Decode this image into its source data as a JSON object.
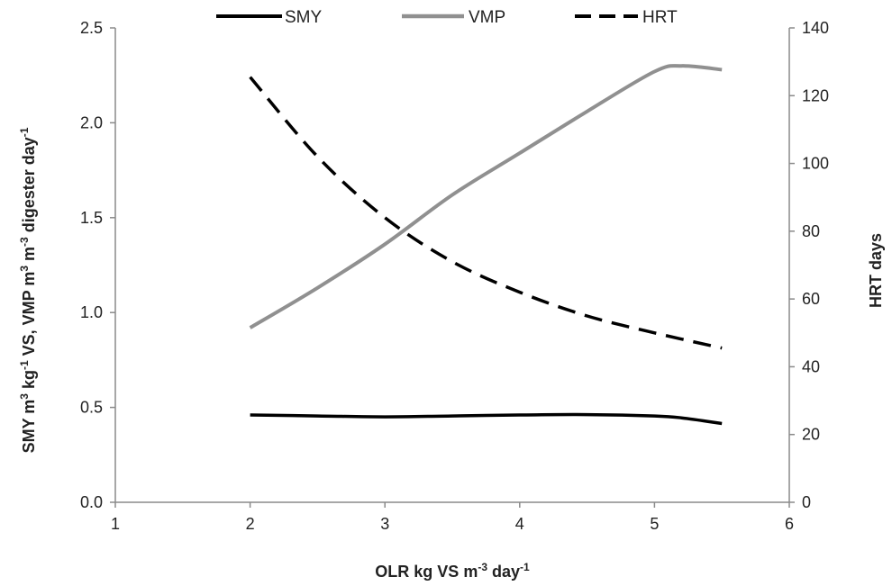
{
  "chart_data": {
    "type": "line",
    "x_axis": {
      "title_main": "OLR kg VS m",
      "title_sup1": "-3",
      "title_mid": " day",
      "title_sup2": "-1",
      "min": 1,
      "max": 6,
      "ticks": [
        1,
        2,
        3,
        4,
        5,
        6
      ]
    },
    "y_axis_left": {
      "title_parts": [
        {
          "t": "SMY m",
          "sup": false
        },
        {
          "t": "3",
          "sup": true
        },
        {
          "t": " kg",
          "sup": false
        },
        {
          "t": "-1",
          "sup": true
        },
        {
          "t": " VS, VMP m",
          "sup": false
        },
        {
          "t": "3",
          "sup": true
        },
        {
          "t": " m",
          "sup": false
        },
        {
          "t": "-3",
          "sup": true
        },
        {
          "t": " digester day",
          "sup": false
        },
        {
          "t": "-1",
          "sup": true
        }
      ],
      "min": 0,
      "max": 2.5,
      "ticks": [
        "0.0",
        "0.5",
        "1.0",
        "1.5",
        "2.0",
        "2.5"
      ]
    },
    "y_axis_right": {
      "title": "HRT days",
      "min": 0,
      "max": 140,
      "ticks": [
        0,
        20,
        40,
        60,
        80,
        100,
        120,
        140
      ]
    },
    "legend_position": "top-center",
    "series": [
      {
        "name": "SMY",
        "axis": "left",
        "color": "#000000",
        "dash": "solid",
        "x": [
          2.0,
          2.5,
          3.0,
          3.5,
          4.0,
          4.5,
          5.0,
          5.2,
          5.5
        ],
        "y": [
          0.46,
          0.455,
          0.45,
          0.455,
          0.46,
          0.462,
          0.455,
          0.445,
          0.415
        ]
      },
      {
        "name": "VMP",
        "axis": "left",
        "color": "#909090",
        "dash": "solid",
        "x": [
          2.0,
          2.5,
          3.0,
          3.5,
          4.0,
          4.5,
          5.0,
          5.2,
          5.5
        ],
        "y": [
          0.92,
          1.13,
          1.36,
          1.62,
          1.84,
          2.06,
          2.27,
          2.3,
          2.28
        ]
      },
      {
        "name": "HRT",
        "axis": "right",
        "color": "#000000",
        "dash": "dashed",
        "x": [
          2.0,
          2.5,
          3.0,
          3.5,
          4.0,
          4.5,
          5.0,
          5.5
        ],
        "y": [
          125.5,
          102,
          84,
          71,
          62,
          55,
          50,
          45.5
        ]
      }
    ]
  }
}
